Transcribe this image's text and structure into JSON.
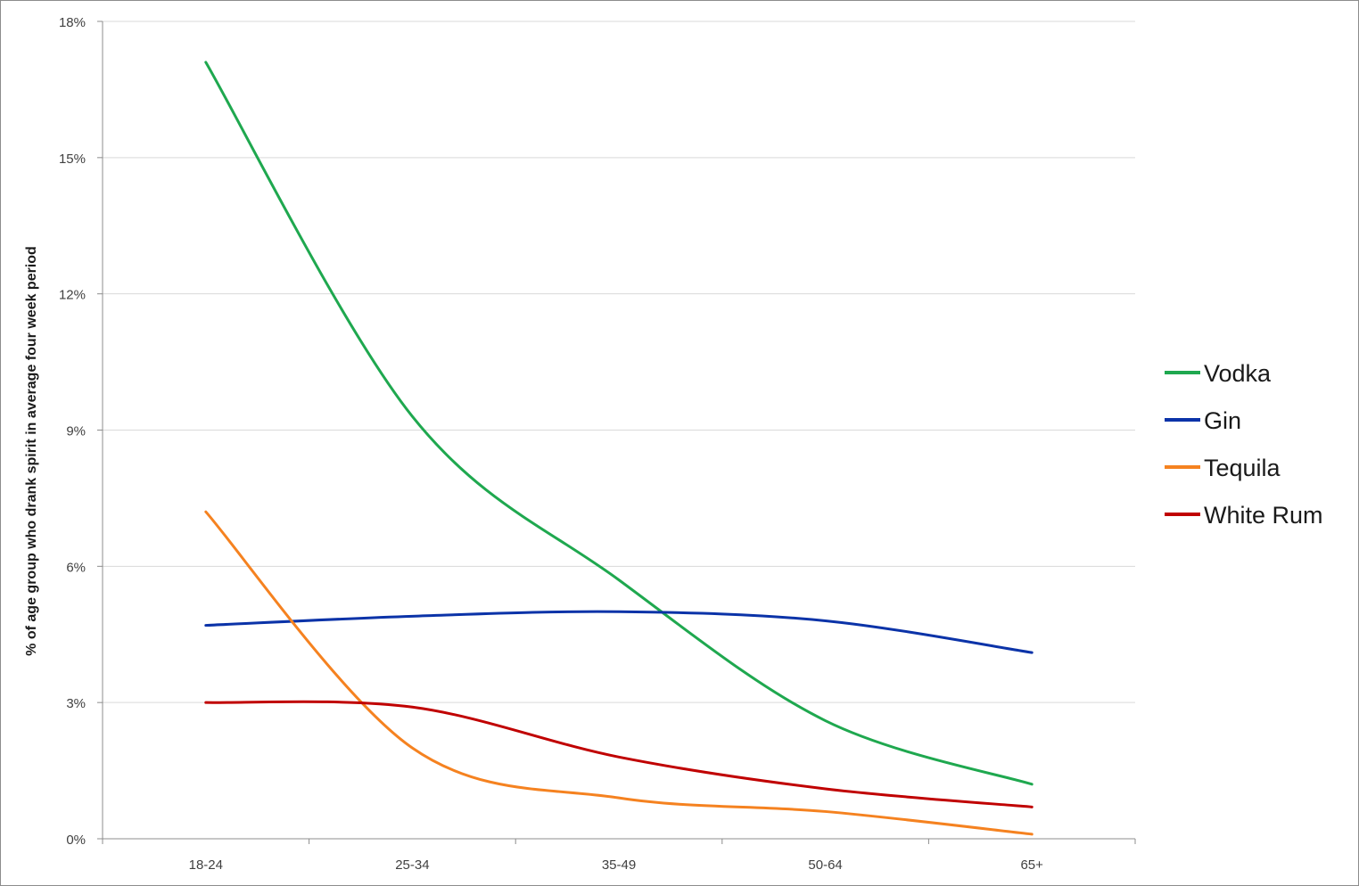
{
  "chart_data": {
    "type": "line",
    "title": "",
    "xlabel": "",
    "ylabel": "% of age group who drank spirit in average four week period",
    "categories": [
      "18-24",
      "25-34",
      "35-49",
      "50-64",
      "65+"
    ],
    "y_ticks": [
      "0%",
      "3%",
      "6%",
      "9%",
      "12%",
      "15%",
      "18%"
    ],
    "ylim": [
      0,
      18
    ],
    "grid": "horizontal",
    "legend": "right",
    "smooth": true,
    "series": [
      {
        "name": "Vodka",
        "color": "#1fa84f",
        "values": [
          17.1,
          9.3,
          5.7,
          2.6,
          1.2
        ]
      },
      {
        "name": "Gin",
        "color": "#0b33a8",
        "values": [
          4.7,
          4.9,
          5.0,
          4.8,
          4.1
        ]
      },
      {
        "name": "Tequila",
        "color": "#f58220",
        "values": [
          7.2,
          2.0,
          0.9,
          0.6,
          0.1
        ]
      },
      {
        "name": "White Rum",
        "color": "#c00000",
        "values": [
          3.0,
          2.9,
          1.8,
          1.1,
          0.7
        ]
      }
    ]
  }
}
